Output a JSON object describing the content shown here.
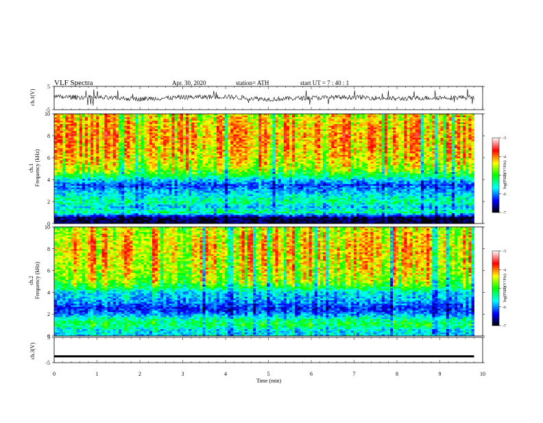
{
  "header": {
    "title": "VLF  Spectra",
    "date": "Apr. 30, 2020",
    "station": "station= ATH",
    "start": "start  UT  =   7  : 40 : 1"
  },
  "colorbar": {
    "label": "log(PSD)(V²/Hz)",
    "ticks": [
      "-3",
      "-4",
      "-5",
      "-6",
      "-7"
    ],
    "stops": [
      "#ffffff",
      "#ff0000",
      "#ffff00",
      "#00ff00",
      "#00ffff",
      "#0000ff",
      "#000000"
    ]
  },
  "chart_data": [
    {
      "type": "line",
      "name": "ch1-waveform",
      "ylabel": "ch.1(V)",
      "ylim": [
        -5,
        5
      ],
      "yticks": [
        "5",
        "-5"
      ],
      "xlim": [
        0,
        10
      ],
      "x": [
        0,
        1,
        2,
        3,
        4,
        5,
        6,
        7,
        8,
        9,
        9.8
      ],
      "y": [
        0.5,
        0.2,
        -0.4,
        0.3,
        0.6,
        -0.5,
        0.1,
        0.4,
        -0.3,
        0.2,
        0.3
      ],
      "series_color": "#000000"
    },
    {
      "type": "heatmap",
      "name": "ch1-spectrogram",
      "ylabel": "ch.1\nFrequency (kHz)",
      "ylim": [
        0,
        10
      ],
      "yticks": [
        "10",
        "8",
        "6",
        "4",
        "2",
        "0"
      ],
      "xlim": [
        0,
        10
      ],
      "time_end_min": 9.8,
      "freq_kHz": [
        0.5,
        1.0,
        1.5,
        2.0,
        2.5,
        3.0,
        3.5,
        4.0,
        4.5,
        5.0,
        6.0,
        7.0,
        8.0,
        9.0,
        10.0
      ],
      "log_psd": [
        -6.8,
        -5.3,
        -5.7,
        -5.3,
        -5.6,
        -5.8,
        -6.1,
        -5.6,
        -5.0,
        -4.6,
        -4.3,
        -4.2,
        -4.1,
        -4.2,
        -4.4
      ]
    },
    {
      "type": "heatmap",
      "name": "ch2-spectrogram",
      "ylabel": "ch.2\nFrequency (kHz)",
      "ylim": [
        0,
        10
      ],
      "yticks": [
        "10",
        "8",
        "6",
        "4",
        "2",
        "0"
      ],
      "xlim": [
        0,
        10
      ],
      "time_end_min": 9.8,
      "freq_kHz": [
        0.5,
        1.0,
        1.5,
        2.0,
        2.5,
        3.0,
        3.5,
        4.0,
        4.5,
        5.0,
        6.0,
        7.0,
        8.0,
        9.0,
        10.0
      ],
      "log_psd": [
        -5.6,
        -5.1,
        -5.3,
        -5.9,
        -6.2,
        -5.9,
        -5.7,
        -5.6,
        -5.0,
        -4.6,
        -4.4,
        -4.3,
        -4.2,
        -4.3,
        -4.5
      ]
    },
    {
      "type": "line",
      "name": "ch3-waveform",
      "ylabel": "ch.3(V)",
      "ylim": [
        -5,
        5
      ],
      "yticks": [
        "5",
        "-5"
      ],
      "xlim": [
        0,
        10
      ],
      "xlabel": "Time  (min)",
      "xticks": [
        "0",
        "1",
        "2",
        "3",
        "4",
        "5",
        "6",
        "7",
        "8",
        "9",
        "10"
      ],
      "x": [
        0,
        9.8
      ],
      "y": [
        -2.5,
        -2.5
      ],
      "series_color": "#000000"
    }
  ]
}
